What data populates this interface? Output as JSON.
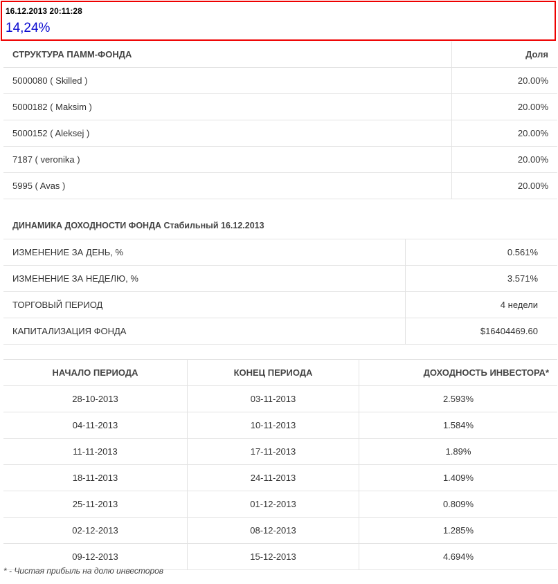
{
  "header": {
    "datetime": "16.12.2013 20:11:28",
    "percent": "14,24%"
  },
  "structure": {
    "col_name": "СТРУКТУРА ПАММ-ФОНДА",
    "col_share": "Доля",
    "rows": [
      {
        "name": "5000080 ( Skilled )",
        "share": "20.00%"
      },
      {
        "name": "5000182 ( Maksim )",
        "share": "20.00%"
      },
      {
        "name": "5000152 ( Aleksej )",
        "share": "20.00%"
      },
      {
        "name": "7187 ( veronika )",
        "share": "20.00%"
      },
      {
        "name": "5995 ( Avas )",
        "share": "20.00%"
      }
    ]
  },
  "dynamics": {
    "title": "ДИНАМИКА ДОХОДНОСТИ ФОНДА Стабильный 16.12.2013",
    "rows": [
      {
        "label": "ИЗМЕНЕНИЕ ЗА ДЕНЬ, %",
        "value": "0.561%"
      },
      {
        "label": "ИЗМЕНЕНИЕ ЗА НЕДЕЛЮ, %",
        "value": "3.571%"
      },
      {
        "label": "ТОРГОВЫЙ ПЕРИОД",
        "value": "4 недели"
      },
      {
        "label": "КАПИТАЛИЗАЦИЯ ФОНДА",
        "value": "$16404469.60"
      }
    ]
  },
  "periods": {
    "col_start": "НАЧАЛО ПЕРИОДА",
    "col_end": "КОНЕЦ ПЕРИОДА",
    "col_yield": "ДОХОДНОСТЬ ИНВЕСТОРА*",
    "rows": [
      {
        "start": "28-10-2013",
        "end": "03-11-2013",
        "yield": "2.593%"
      },
      {
        "start": "04-11-2013",
        "end": "10-11-2013",
        "yield": "1.584%"
      },
      {
        "start": "11-11-2013",
        "end": "17-11-2013",
        "yield": "1.89%"
      },
      {
        "start": "18-11-2013",
        "end": "24-11-2013",
        "yield": "1.409%"
      },
      {
        "start": "25-11-2013",
        "end": "01-12-2013",
        "yield": "0.809%"
      },
      {
        "start": "02-12-2013",
        "end": "08-12-2013",
        "yield": "1.285%"
      },
      {
        "start": "09-12-2013",
        "end": "15-12-2013",
        "yield": "4.694%"
      }
    ]
  },
  "footnote": "* - Чистая прибыль на долю инвесторов"
}
